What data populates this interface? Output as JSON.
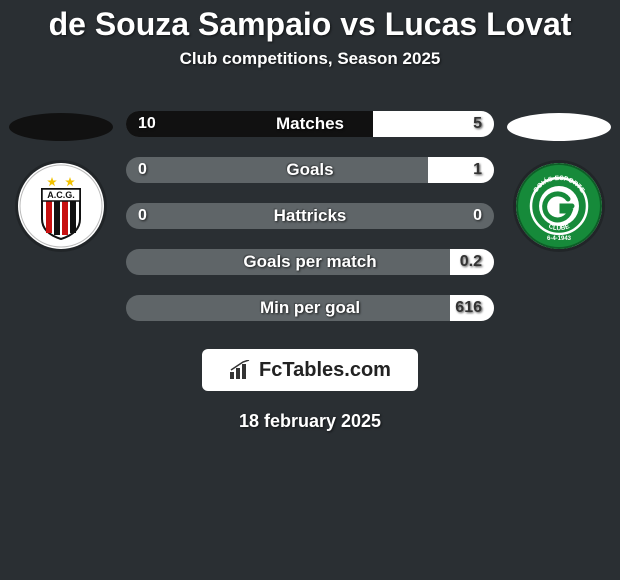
{
  "title": "de Souza Sampaio vs Lucas Lovat",
  "subtitle": "Club competitions, Season 2025",
  "date": "18 february 2025",
  "branding": {
    "text": "FcTables.com",
    "background_color": "#ffffff",
    "text_color": "#222222",
    "icon_color": "#333333"
  },
  "background_color": "#2a2f33",
  "bar_track_color": "#5f6568",
  "left_team": {
    "ellipse_color": "#111111",
    "bar_color": "#111111",
    "badge": {
      "bg": "#ffffff",
      "stripe1": "#c71010",
      "stripe2": "#111111",
      "text": "A.C.G.",
      "star_color": "#f2c200"
    }
  },
  "right_team": {
    "ellipse_color": "#ffffff",
    "bar_color": "#ffffff",
    "badge": {
      "bg": "#168a3a",
      "ring": "#ffffff",
      "center": "#ffffff",
      "text_top": "GOIÁS ESPORTE",
      "text_bot": "CLUBE",
      "date_text": "6-4-1943"
    }
  },
  "rows": [
    {
      "label": "Matches",
      "left_val": "10",
      "right_val": "5",
      "left_pct": 67,
      "right_pct": 33,
      "value_fontsize": 16,
      "label_fontsize": 17
    },
    {
      "label": "Goals",
      "left_val": "0",
      "right_val": "1",
      "left_pct": 0,
      "right_pct": 18,
      "value_fontsize": 16,
      "label_fontsize": 17
    },
    {
      "label": "Hattricks",
      "left_val": "0",
      "right_val": "0",
      "left_pct": 0,
      "right_pct": 0,
      "value_fontsize": 16,
      "label_fontsize": 17
    },
    {
      "label": "Goals per match",
      "left_val": "",
      "right_val": "0.2",
      "left_pct": 0,
      "right_pct": 12,
      "value_fontsize": 16,
      "label_fontsize": 17
    },
    {
      "label": "Min per goal",
      "left_val": "",
      "right_val": "616",
      "left_pct": 0,
      "right_pct": 12,
      "value_fontsize": 16,
      "label_fontsize": 17
    }
  ]
}
